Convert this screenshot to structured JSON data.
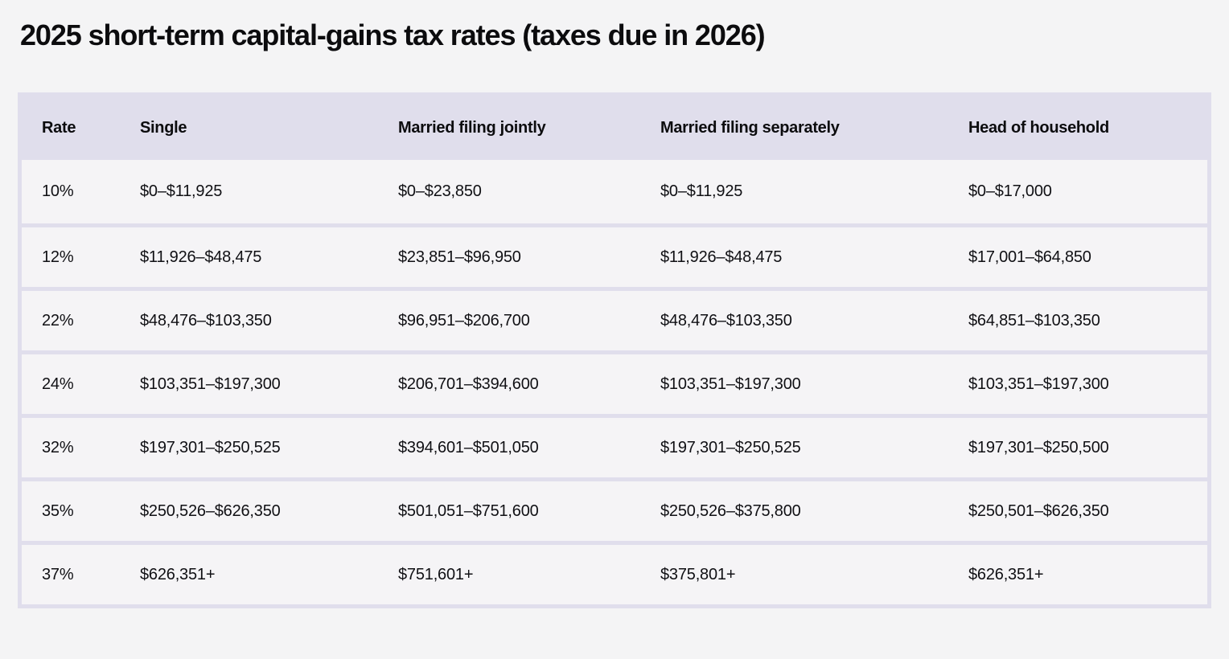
{
  "page": {
    "title": "2025 short-term capital-gains tax rates (taxes due in 2026)"
  },
  "colors": {
    "page_background": "#f4f4f5",
    "header_background": "#e0deec",
    "row_background": "#f5f4f6",
    "table_border": "#e0deec",
    "text": "#0f0f12"
  },
  "chart_data": {
    "type": "table",
    "title": "2025 short-term capital-gains tax rates (taxes due in 2026)",
    "columns": [
      "Rate",
      "Single",
      "Married filing jointly",
      "Married filing separately",
      "Head of household"
    ],
    "rows": [
      [
        "10%",
        "$0–$11,925",
        "$0–$23,850",
        "$0–$11,925",
        "$0–$17,000"
      ],
      [
        "12%",
        "$11,926–$48,475",
        "$23,851–$96,950",
        "$11,926–$48,475",
        "$17,001–$64,850"
      ],
      [
        "22%",
        "$48,476–$103,350",
        "$96,951–$206,700",
        "$48,476–$103,350",
        "$64,851–$103,350"
      ],
      [
        "24%",
        "$103,351–$197,300",
        "$206,701–$394,600",
        "$103,351–$197,300",
        "$103,351–$197,300"
      ],
      [
        "32%",
        "$197,301–$250,525",
        "$394,601–$501,050",
        "$197,301–$250,525",
        "$197,301–$250,500"
      ],
      [
        "35%",
        "$250,526–$626,350",
        "$501,051–$751,600",
        "$250,526–$375,800",
        "$250,501–$626,350"
      ],
      [
        "37%",
        "$626,351+",
        "$751,601+",
        "$375,801+",
        "$626,351+"
      ]
    ],
    "rates": [
      0.1,
      0.12,
      0.22,
      0.24,
      0.32,
      0.35,
      0.37
    ],
    "grid": "horizontal-row-separators",
    "legend_position": "none"
  }
}
